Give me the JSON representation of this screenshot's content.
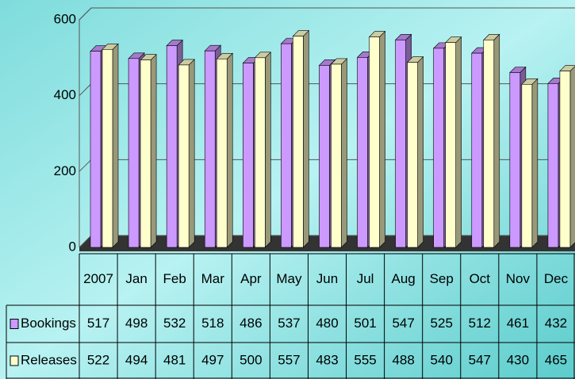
{
  "chart_data": {
    "type": "bar",
    "categories": [
      "2007",
      "Jan",
      "Feb",
      "Mar",
      "Apr",
      "May",
      "Jun",
      "Jul",
      "Aug",
      "Sep",
      "Oct",
      "Nov",
      "Dec"
    ],
    "series": [
      {
        "name": "Bookings",
        "color": "#cc99ff",
        "values": [
          517,
          498,
          532,
          518,
          486,
          537,
          480,
          501,
          547,
          525,
          512,
          461,
          432
        ]
      },
      {
        "name": "Releases",
        "color": "#ffffcc",
        "values": [
          522,
          494,
          481,
          497,
          500,
          557,
          483,
          555,
          488,
          540,
          547,
          430,
          465
        ]
      }
    ],
    "ylim": [
      0,
      600
    ],
    "yticks": [
      0,
      200,
      400,
      600
    ],
    "grid": true
  }
}
